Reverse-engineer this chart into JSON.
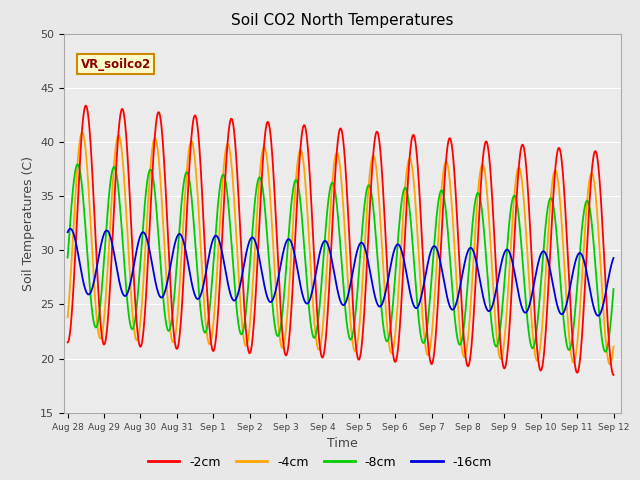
{
  "title": "Soil CO2 North Temperatures",
  "xlabel": "Time",
  "ylabel": "Soil Temperatures (C)",
  "ylim": [
    15,
    50
  ],
  "annotation": "VR_soilco2",
  "fig_bg_color": "#e8e8e8",
  "plot_bg_color": "#ebebeb",
  "series_colors": {
    "-2cm": "#ff0000",
    "-4cm": "#ffa500",
    "-8cm": "#00cc00",
    "-16cm": "#0000dd"
  },
  "xtick_labels": [
    "Aug 28",
    "Aug 29",
    "Aug 30",
    "Aug 31",
    "Sep 1",
    "Sep 2",
    "Sep 3",
    "Sep 4",
    "Sep 5",
    "Sep 6",
    "Sep 7",
    "Sep 8",
    "Sep 9",
    "Sep 10",
    "Sep 11",
    "Sep 12"
  ],
  "ytick_labels": [
    15,
    20,
    25,
    30,
    35,
    40,
    45,
    50
  ],
  "legend_entries": [
    "-2cm",
    "-4cm",
    "-8cm",
    "-16cm"
  ]
}
